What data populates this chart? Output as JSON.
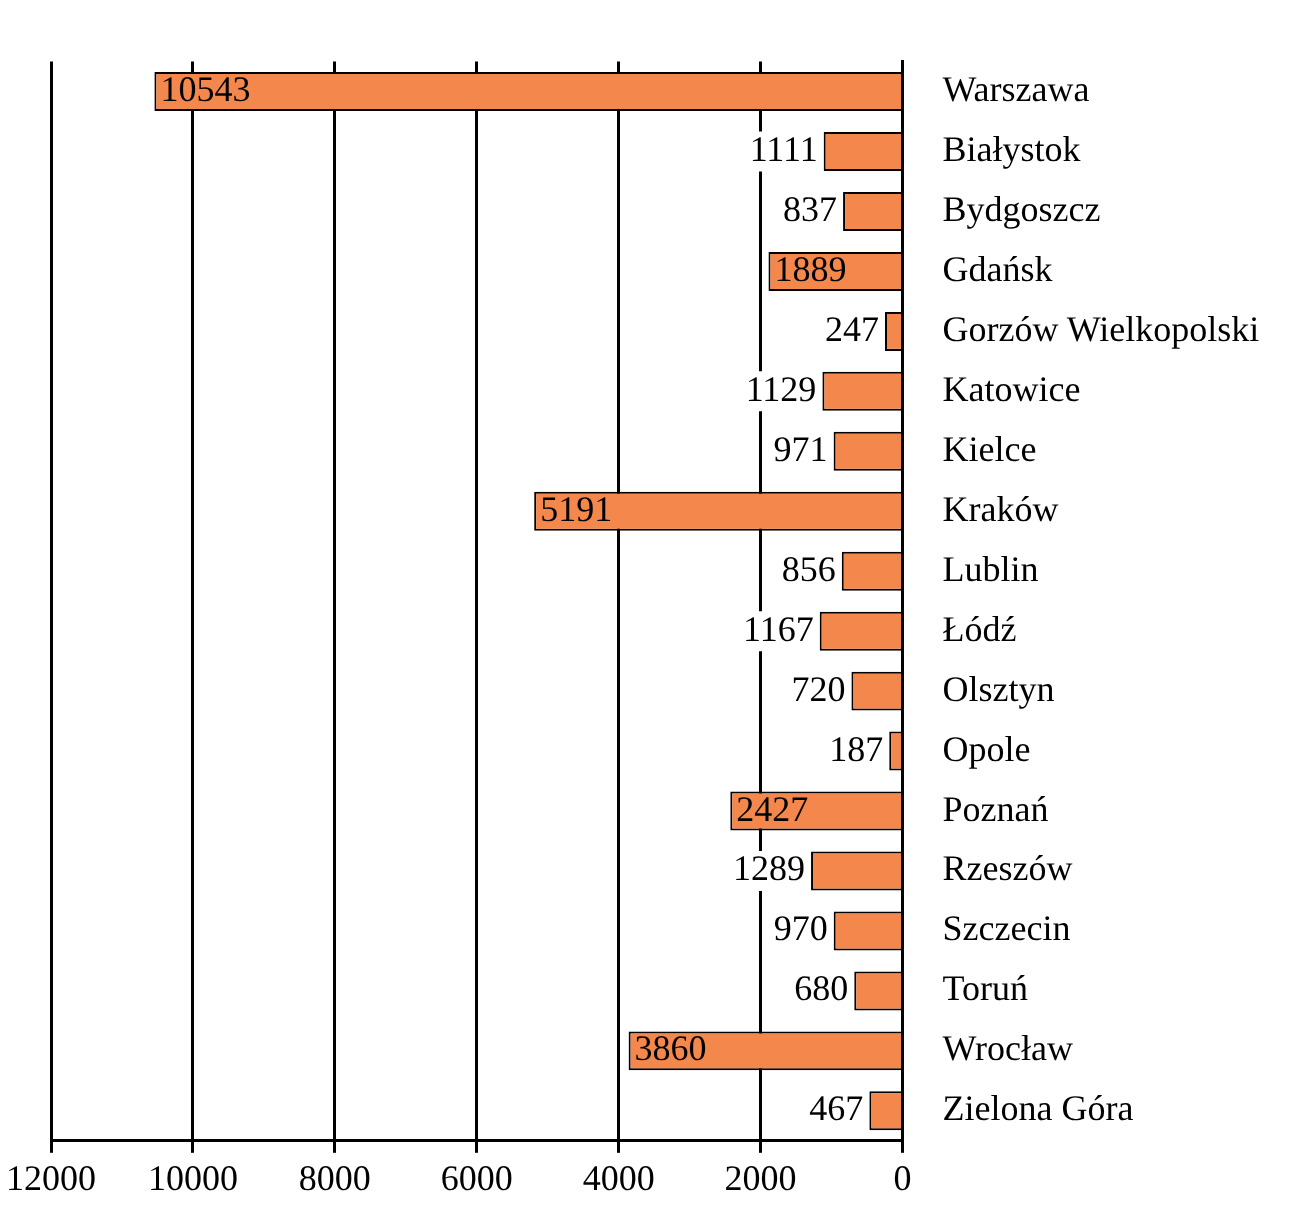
{
  "chart_data": {
    "type": "bar",
    "orientation": "horizontal",
    "categories": [
      "Warszawa",
      "Białystok",
      "Bydgoszcz",
      "Gdańsk",
      "Gorzów Wielkopolski",
      "Katowice",
      "Kielce",
      "Kraków",
      "Lublin",
      "Łódź",
      "Olsztyn",
      "Opole",
      "Poznań",
      "Rzeszów",
      "Szczecin",
      "Toruń",
      "Wrocław",
      "Zielona Góra"
    ],
    "values": [
      10543,
      1111,
      837,
      1889,
      247,
      1129,
      971,
      5191,
      856,
      1167,
      720,
      187,
      2427,
      1289,
      970,
      680,
      3860,
      467
    ],
    "color": "#f4874b",
    "xlim": [
      12000,
      0
    ],
    "xticks": [
      12000,
      10000,
      8000,
      6000,
      4000,
      2000,
      0
    ],
    "grid": "x",
    "data_labels": true
  }
}
